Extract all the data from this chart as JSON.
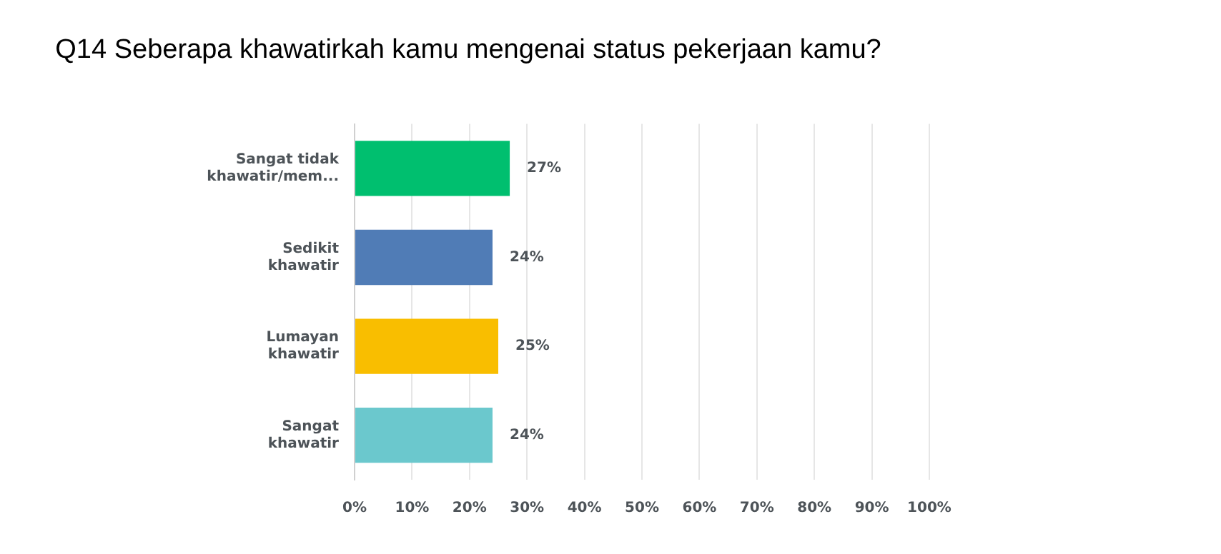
{
  "chart_data": {
    "type": "bar",
    "orientation": "horizontal",
    "title": "Q14 Seberapa khawatirkah kamu mengenai status pekerjaan kamu?",
    "categories": [
      "Sangat tidak khawatir/mem...",
      "Sedikit khawatir",
      "Lumayan khawatir",
      "Sangat khawatir"
    ],
    "values": [
      27,
      24,
      25,
      24
    ],
    "colors": [
      "#00bf6f",
      "#507cb6",
      "#f9be00",
      "#6bc8cd"
    ],
    "value_labels": [
      "27%",
      "24%",
      "25%",
      "24%"
    ],
    "xlim": [
      0,
      100
    ],
    "xticks": [
      {
        "value": 0,
        "label": "0%"
      },
      {
        "value": 10,
        "label": "10%"
      },
      {
        "value": 20,
        "label": "20%"
      },
      {
        "value": 30,
        "label": "30%"
      },
      {
        "value": 40,
        "label": "40%"
      },
      {
        "value": 50,
        "label": "50%"
      },
      {
        "value": 60,
        "label": "60%"
      },
      {
        "value": 70,
        "label": "70%"
      },
      {
        "value": 80,
        "label": "80%"
      },
      {
        "value": 90,
        "label": "90%"
      },
      {
        "value": 100,
        "label": "100%"
      }
    ],
    "grid": "x",
    "legend": false
  }
}
